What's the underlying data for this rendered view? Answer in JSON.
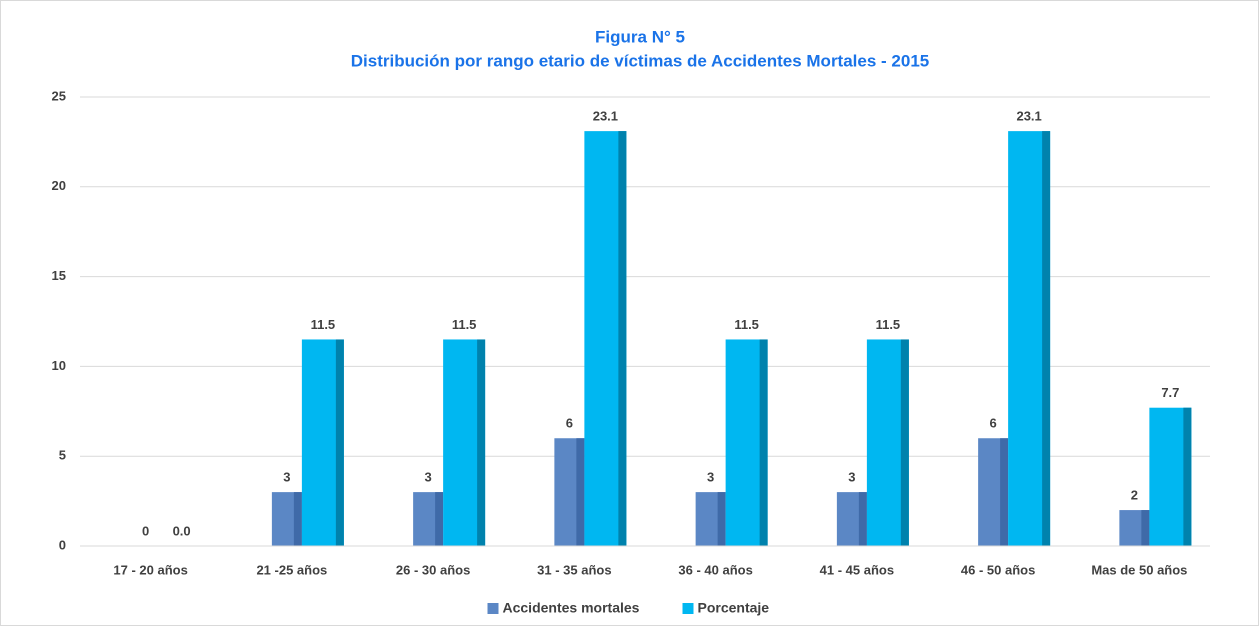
{
  "chart_data": {
    "type": "bar",
    "title": "Figura N° 5",
    "subtitle": "Distribución por rango etario de víctimas de Accidentes Mortales - 2015",
    "categories": [
      "17 - 20 años",
      "21 -25 años",
      "26 - 30 años",
      "31 - 35 años",
      "36 - 40 años",
      "41 - 45 años",
      "46 - 50 años",
      "Mas de 50 años"
    ],
    "series": [
      {
        "name": "Accidentes mortales",
        "color": "#5b87c5",
        "values": [
          0,
          3,
          3,
          6,
          3,
          3,
          6,
          2
        ]
      },
      {
        "name": "Porcentaje",
        "color": "#00b7f1",
        "values": [
          0.0,
          11.5,
          11.5,
          23.1,
          11.5,
          11.5,
          23.1,
          7.7
        ],
        "value_labels": [
          "0.0",
          "11.5",
          "11.5",
          "23.1",
          "11.5",
          "11.5",
          "23.1",
          "7.7"
        ]
      }
    ],
    "ylim": [
      0,
      25
    ],
    "yticks": [
      0,
      5,
      10,
      15,
      20,
      25
    ],
    "grid": true,
    "legend": "bottom"
  }
}
